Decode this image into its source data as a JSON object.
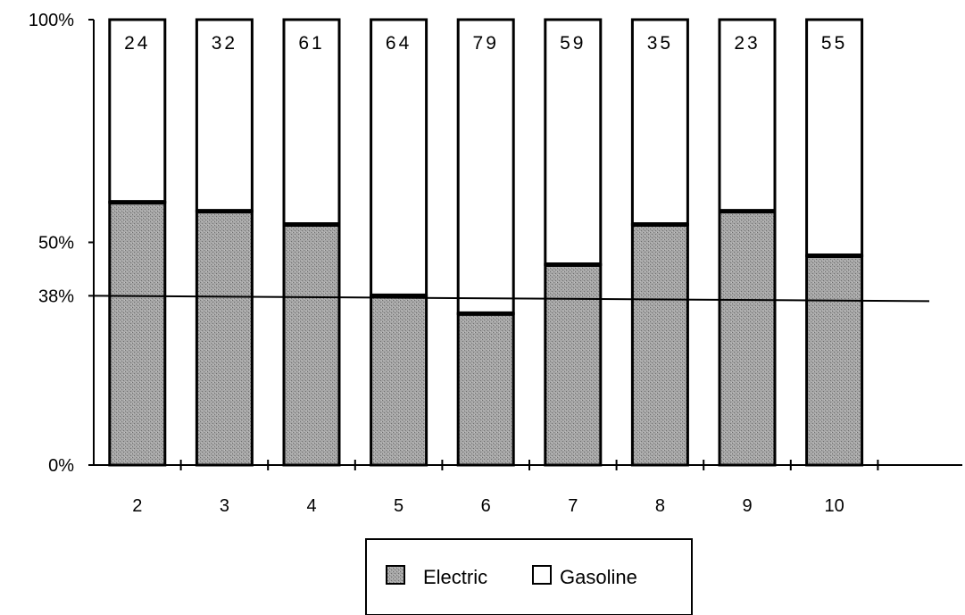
{
  "chart_data": {
    "type": "bar",
    "stacked": true,
    "categories": [
      "2",
      "3",
      "4",
      "5",
      "6",
      "7",
      "8",
      "9",
      "10"
    ],
    "series": [
      {
        "name": "Electric",
        "values": [
          59,
          57,
          54,
          38,
          34,
          45,
          54,
          57,
          47
        ]
      },
      {
        "name": "Gasoline",
        "values": [
          41,
          43,
          46,
          62,
          66,
          55,
          46,
          43,
          53
        ]
      }
    ],
    "count_labels": [
      "24",
      "32",
      "61",
      "64",
      "79",
      "59",
      "35",
      "23",
      "55"
    ],
    "y_ticks": [
      {
        "value": 0,
        "label": "0%"
      },
      {
        "value": 38,
        "label": "38%"
      },
      {
        "value": 50,
        "label": "50%"
      },
      {
        "value": 100,
        "label": "100%"
      }
    ],
    "reference_line": 38,
    "ylim": [
      0,
      100
    ],
    "title": "",
    "xlabel": "",
    "ylabel": "",
    "legend": {
      "position": "bottom-center",
      "entries": [
        "Electric",
        "Gasoline"
      ]
    },
    "colors": {
      "electric": "#9a9a9a",
      "gasoline": "#ffffff",
      "outline": "#000000"
    }
  }
}
